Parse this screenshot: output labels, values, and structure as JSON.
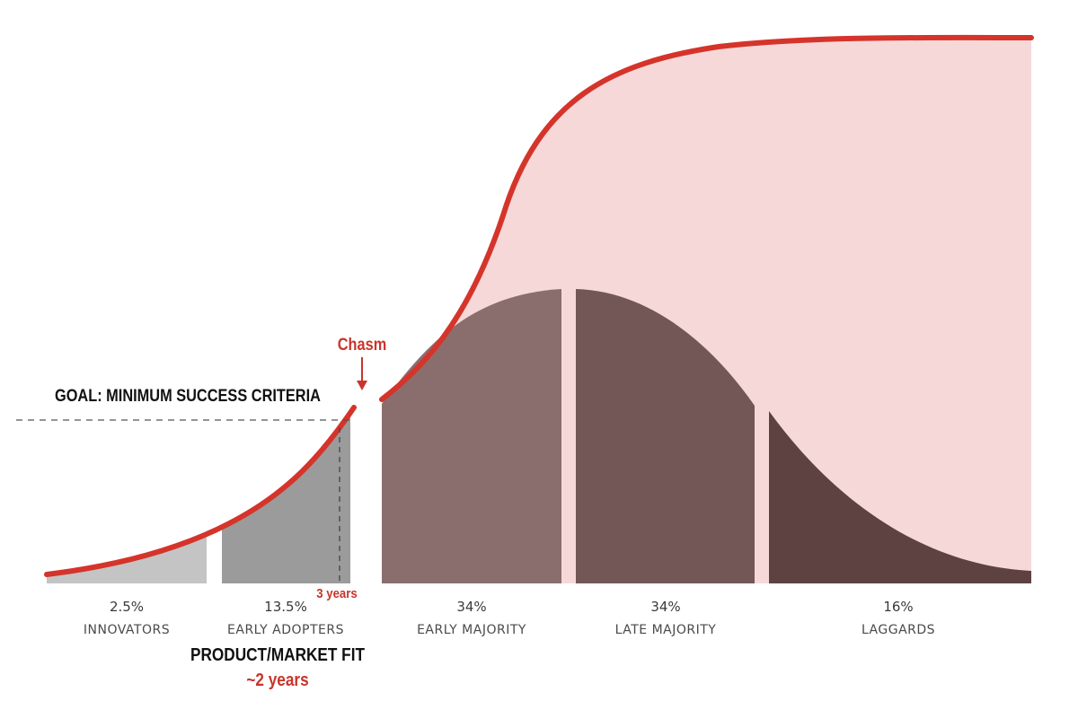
{
  "chart_data": {
    "type": "area",
    "segments": [
      {
        "percent": "2.5%",
        "label": "INNOVATORS",
        "color": "#c4c4c4"
      },
      {
        "percent": "13.5%",
        "label": "EARLY ADOPTERS",
        "color": "#9b9b9b"
      },
      {
        "percent": "34%",
        "label": "EARLY MAJORITY",
        "color": "#8a6e6e"
      },
      {
        "percent": "34%",
        "label": "LATE MAJORITY",
        "color": "#735757"
      },
      {
        "percent": "16%",
        "label": "LAGGARDS",
        "color": "#5e4242"
      }
    ],
    "annotations": {
      "chasm": "Chasm",
      "goal": "GOAL: MINIMUM SUCCESS CRITERIA",
      "three_years": "3 years",
      "product_market_fit": "PRODUCT/MARKET FIT",
      "two_years": "~2 years"
    },
    "colors": {
      "accent": "#d5342b",
      "adoption_fill": "#f6d8d8"
    }
  }
}
